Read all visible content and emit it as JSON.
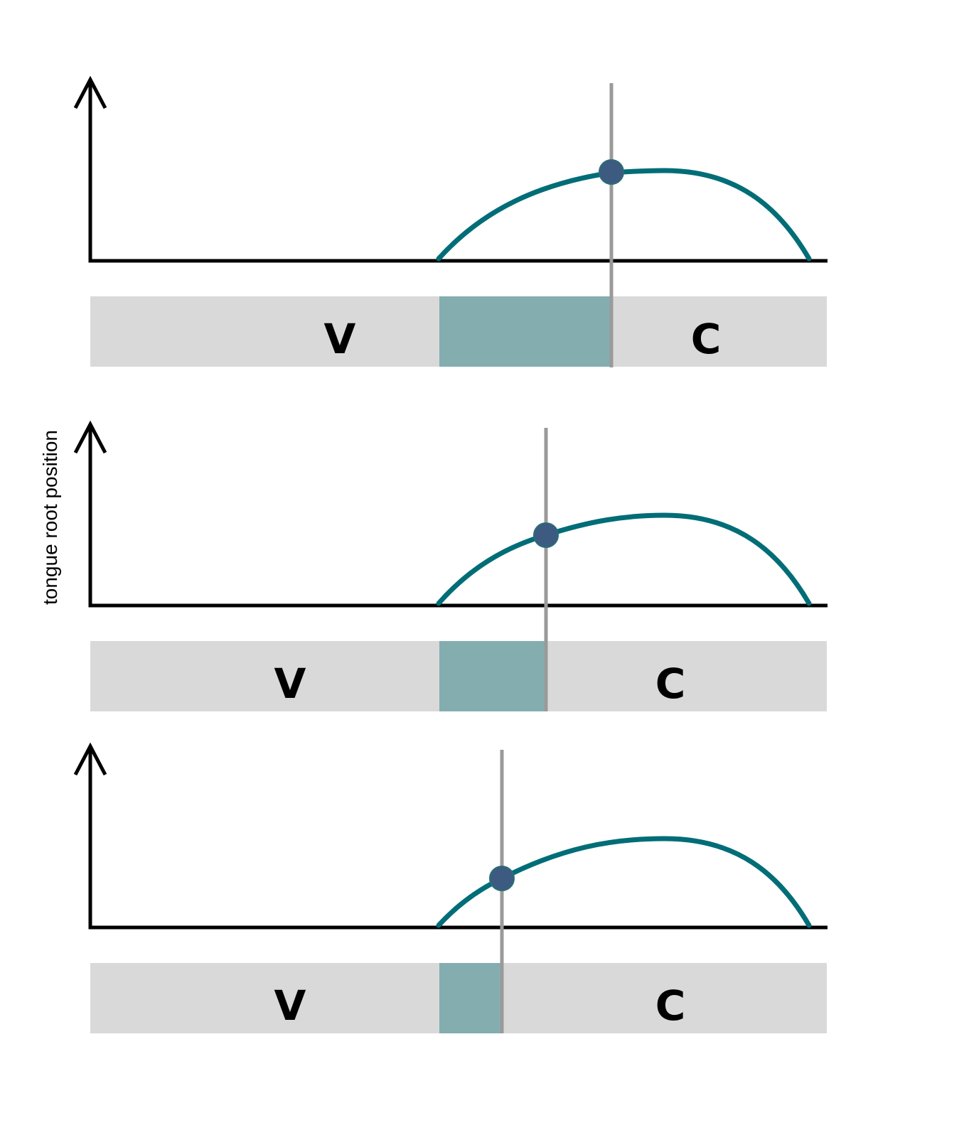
{
  "y_axis_label": "tongue root position",
  "colors": {
    "curve": "#006d77",
    "highlight": "#84adb0",
    "bar": "#d9d9d9",
    "marker": "#9a9a9a",
    "dot": "#3d5a80"
  },
  "panels": [
    {
      "v_label": "V",
      "c_label": "C",
      "overlap_fraction": 0.77
    },
    {
      "v_label": "V",
      "c_label": "C",
      "overlap_fraction": 0.49
    },
    {
      "v_label": "V",
      "c_label": "C",
      "overlap_fraction": 0.29
    }
  ]
}
